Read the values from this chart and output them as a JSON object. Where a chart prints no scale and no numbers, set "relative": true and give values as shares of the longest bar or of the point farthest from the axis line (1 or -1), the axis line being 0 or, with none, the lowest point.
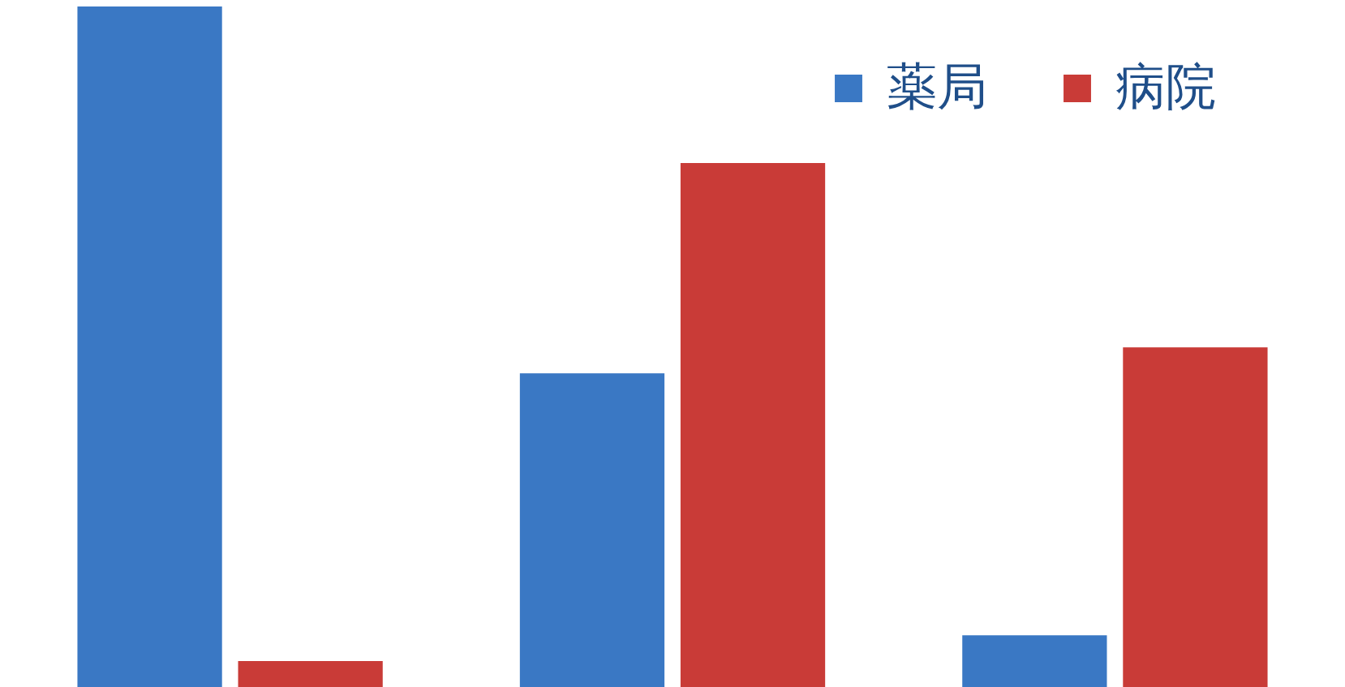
{
  "chart_data": {
    "type": "bar",
    "categories": [
      null,
      null,
      null
    ],
    "relative": true,
    "legend": "top right",
    "series": [
      {
        "name": "薬局",
        "color": "#3a78c4",
        "values": [
          1,
          0.461,
          0.076
        ]
      },
      {
        "name": "病院",
        "color": "#c93b37",
        "values": [
          0.038,
          0.77,
          0.499
        ]
      }
    ]
  }
}
